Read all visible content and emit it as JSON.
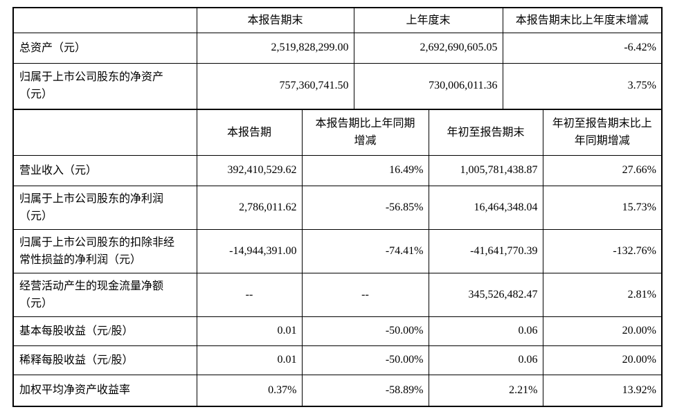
{
  "table1": {
    "headers": [
      "本报告期末",
      "上年度末",
      "本报告期末比上年度末增减"
    ],
    "rows": [
      {
        "label": "总资产（元）",
        "values": [
          "2,519,828,299.00",
          "2,692,690,605.05",
          "-6.42%"
        ]
      },
      {
        "label": "归属于上市公司股东的净资产\n（元）",
        "values": [
          "757,360,741.50",
          "730,006,011.36",
          "3.75%"
        ]
      }
    ]
  },
  "table2": {
    "headers": [
      "本报告期",
      "本报告期比上年同期\n增减",
      "年初至报告期末",
      "年初至报告期末比上\n年同期增减"
    ],
    "rows": [
      {
        "label": "营业收入（元）",
        "values": [
          "392,410,529.62",
          "16.49%",
          "1,005,781,438.87",
          "27.66%"
        ]
      },
      {
        "label": "归属于上市公司股东的净利润\n（元）",
        "values": [
          "2,786,011.62",
          "-56.85%",
          "16,464,348.04",
          "15.73%"
        ]
      },
      {
        "label": "归属于上市公司股东的扣除非经\n常性损益的净利润（元）",
        "values": [
          "-14,944,391.00",
          "-74.41%",
          "-41,641,770.39",
          "-132.76%"
        ]
      },
      {
        "label": "经营活动产生的现金流量净额\n（元）",
        "values": [
          "--",
          "--",
          "345,526,482.47",
          "2.81%"
        ]
      },
      {
        "label": "基本每股收益（元/股）",
        "values": [
          "0.01",
          "-50.00%",
          "0.06",
          "20.00%"
        ]
      },
      {
        "label": "稀释每股收益（元/股）",
        "values": [
          "0.01",
          "-50.00%",
          "0.06",
          "20.00%"
        ]
      },
      {
        "label": "加权平均净资产收益率",
        "values": [
          "0.37%",
          "-58.89%",
          "2.21%",
          "13.92%"
        ]
      }
    ]
  }
}
